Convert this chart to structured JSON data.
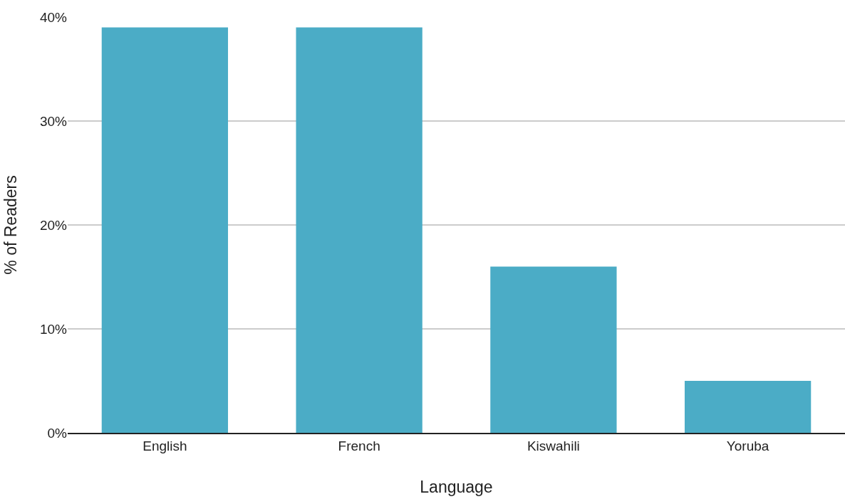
{
  "chart_data": {
    "type": "bar",
    "xlabel": "Language",
    "ylabel": "% of Readers",
    "categories": [
      "English",
      "French",
      "Kiswahili",
      "Yoruba"
    ],
    "values": [
      39,
      39,
      16,
      5
    ],
    "color": "#4bacc6",
    "ylim": [
      0,
      40
    ],
    "yticks": [
      {
        "value": 0,
        "label": "0%"
      },
      {
        "value": 10,
        "label": "10%"
      },
      {
        "value": 20,
        "label": "20%"
      },
      {
        "value": 30,
        "label": "30%"
      },
      {
        "value": 40,
        "label": "40%"
      }
    ],
    "grid": "y"
  }
}
